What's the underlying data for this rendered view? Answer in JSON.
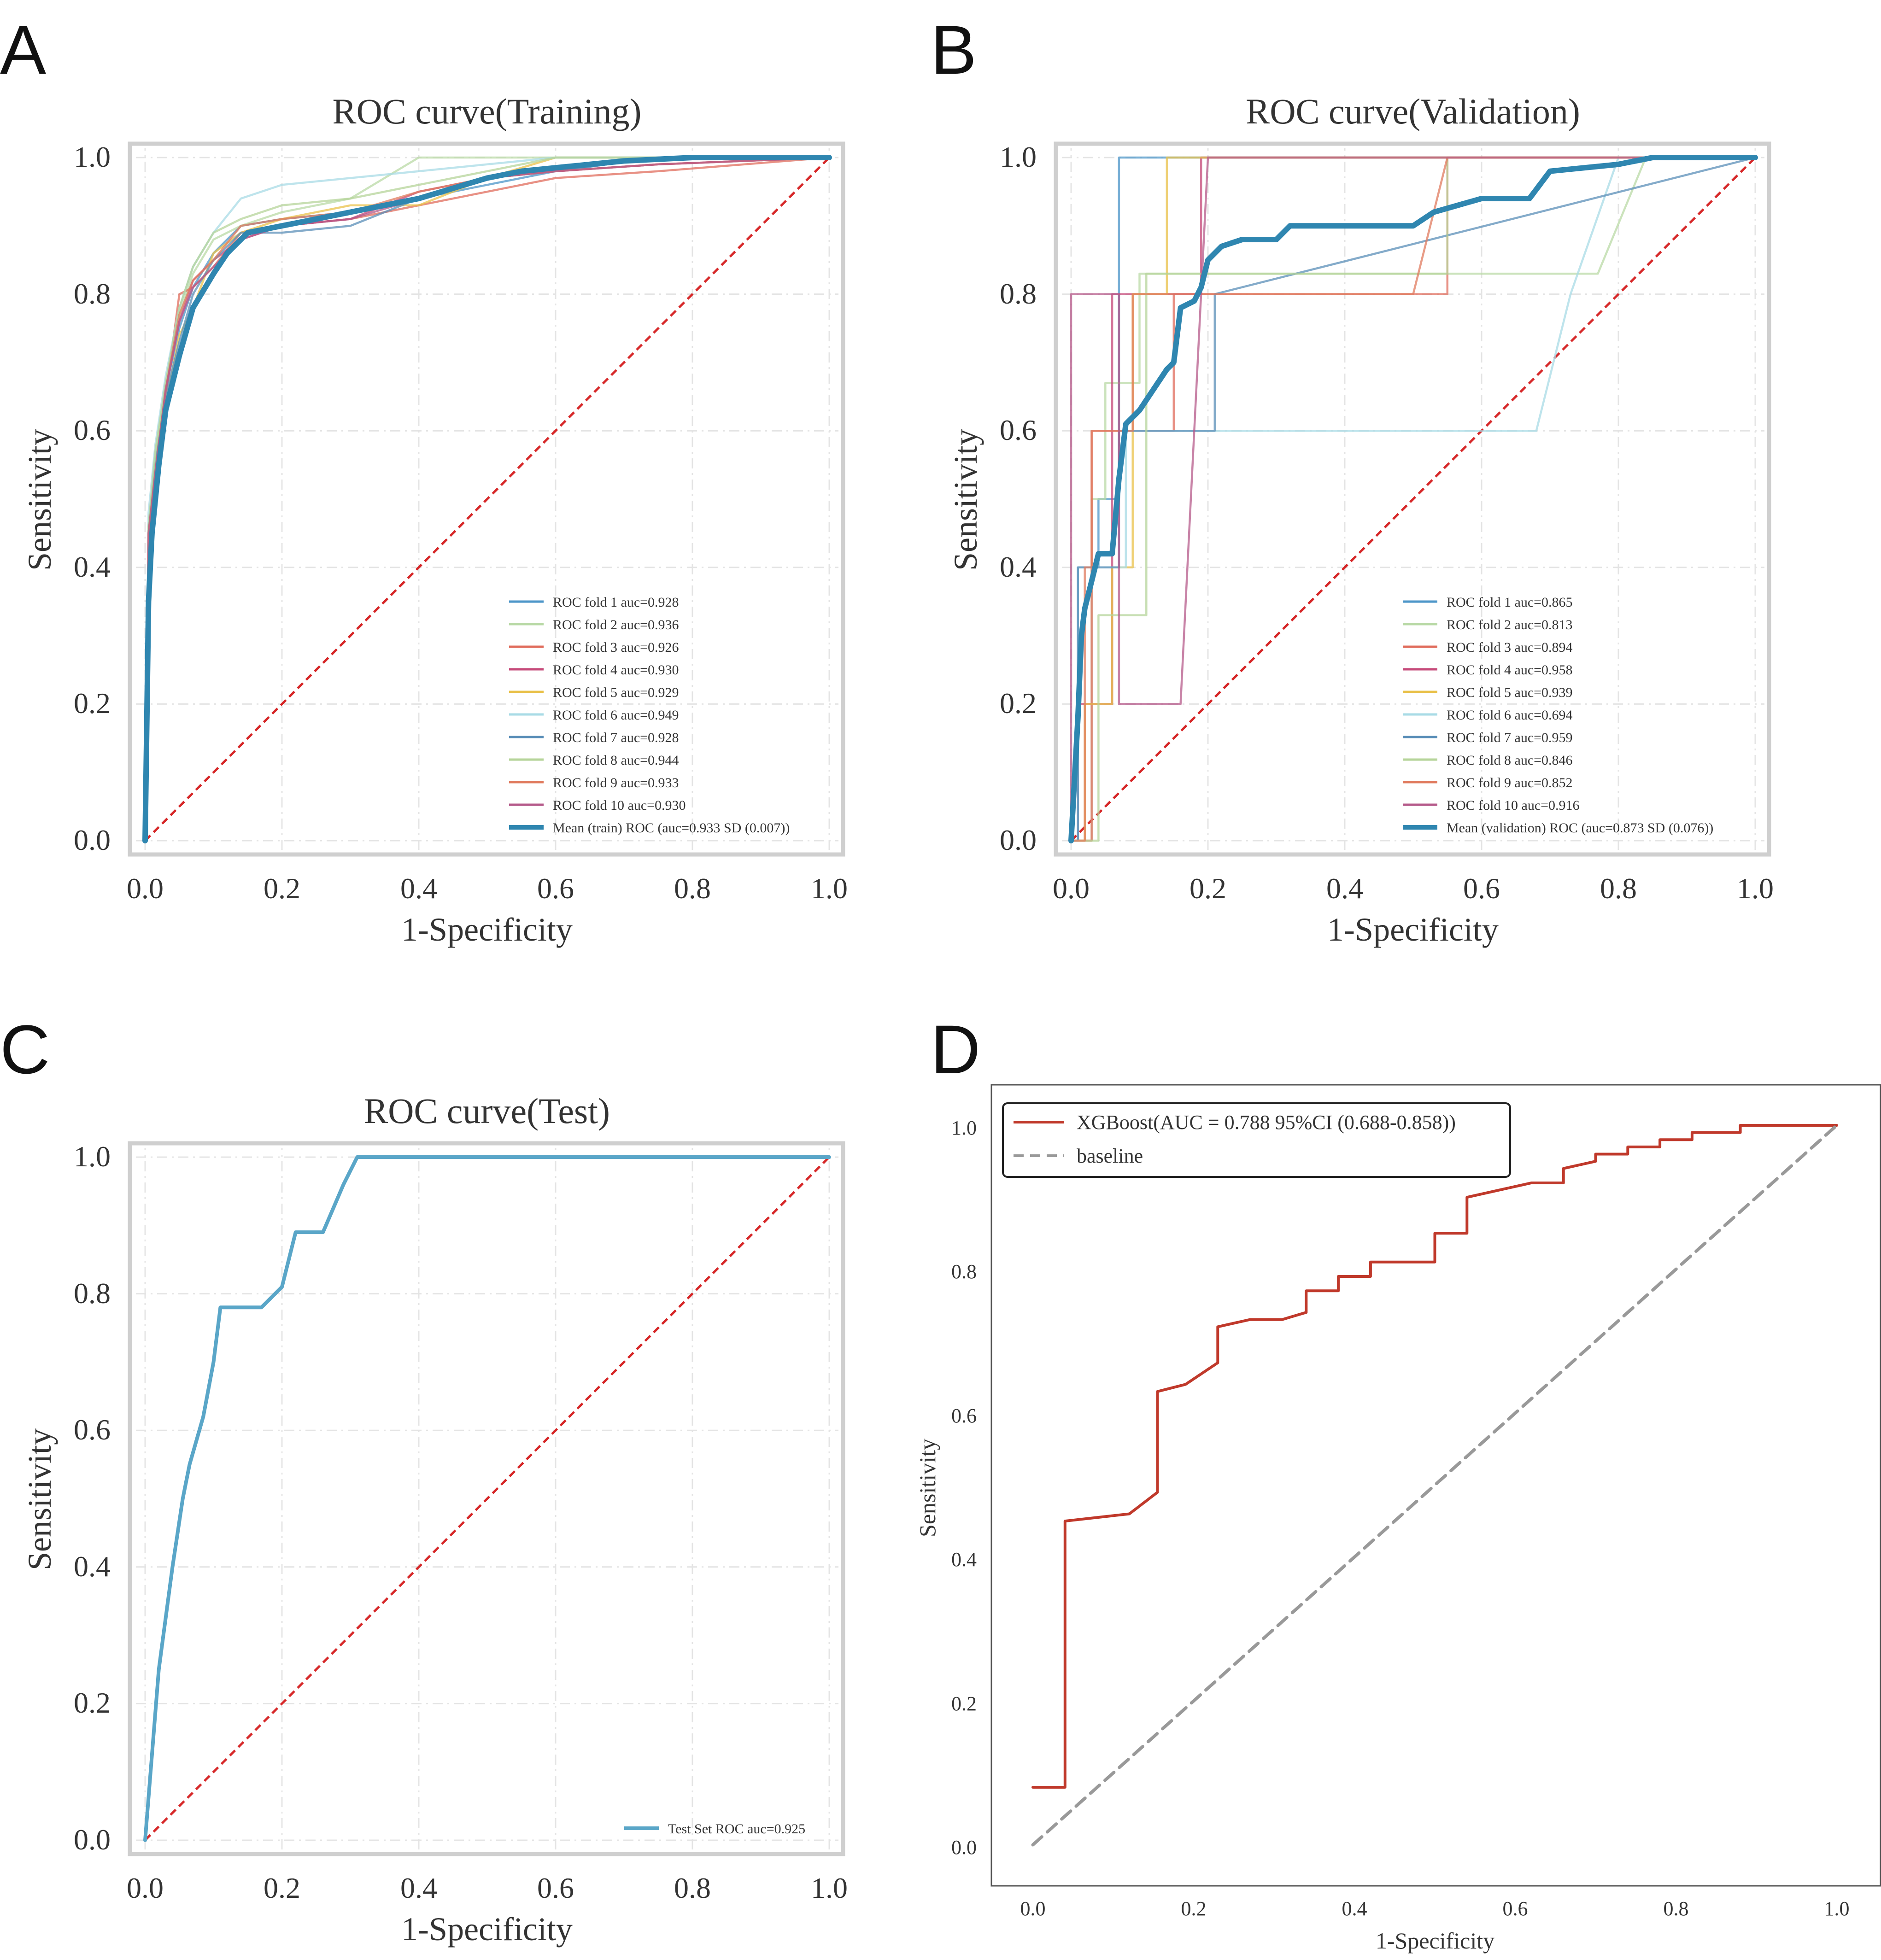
{
  "panels": {
    "A": {
      "letter": "A"
    },
    "B": {
      "letter": "B"
    },
    "C": {
      "letter": "C"
    },
    "D": {
      "letter": "D"
    }
  },
  "chart_data": [
    {
      "id": "A",
      "type": "line",
      "title": "ROC curve(Training)",
      "xlabel": "1-Specificity",
      "ylabel": "Sensitivity",
      "xlim": [
        0,
        1
      ],
      "ylim": [
        0,
        1
      ],
      "xticks": [
        "0.0",
        "0.2",
        "0.4",
        "0.6",
        "0.8",
        "1.0"
      ],
      "yticks": [
        "0.0",
        "0.2",
        "0.4",
        "0.6",
        "0.8",
        "1.0"
      ],
      "grid": true,
      "legend_position": "lower-right",
      "reference_line": {
        "x": [
          0,
          1
        ],
        "y": [
          0,
          1
        ],
        "color": "#d62728",
        "style": "dashed"
      },
      "series": [
        {
          "name": "ROC fold   1 auc=0.928",
          "color": "#4c96c8",
          "x": [
            0,
            0.005,
            0.015,
            0.03,
            0.05,
            0.07,
            0.1,
            0.14,
            0.2,
            0.3,
            0.4,
            0.5,
            0.6,
            0.75,
            1.0
          ],
          "y": [
            0,
            0.45,
            0.55,
            0.66,
            0.75,
            0.81,
            0.86,
            0.9,
            0.91,
            0.92,
            0.94,
            0.96,
            0.98,
            1.0,
            1.0
          ]
        },
        {
          "name": "ROC fold   2 auc=0.936",
          "color": "#b9d9a6",
          "x": [
            0,
            0.005,
            0.015,
            0.03,
            0.05,
            0.07,
            0.1,
            0.14,
            0.2,
            0.3,
            0.4,
            0.5,
            0.6,
            0.75,
            1.0
          ],
          "y": [
            0,
            0.46,
            0.56,
            0.67,
            0.77,
            0.83,
            0.88,
            0.9,
            0.92,
            0.94,
            1.0,
            1.0,
            1.0,
            1.0,
            1.0
          ]
        },
        {
          "name": "ROC fold   3 auc=0.926",
          "color": "#e06c5c",
          "x": [
            0,
            0.005,
            0.015,
            0.03,
            0.05,
            0.07,
            0.1,
            0.14,
            0.2,
            0.3,
            0.4,
            0.5,
            0.6,
            0.75,
            1.0
          ],
          "y": [
            0,
            0.44,
            0.5,
            0.65,
            0.8,
            0.81,
            0.84,
            0.89,
            0.9,
            0.91,
            0.93,
            0.95,
            0.97,
            0.98,
            1.0
          ]
        },
        {
          "name": "ROC fold   4 auc=0.930",
          "color": "#c64a7a",
          "x": [
            0,
            0.005,
            0.015,
            0.03,
            0.05,
            0.07,
            0.1,
            0.14,
            0.2,
            0.3,
            0.4,
            0.5,
            0.6,
            0.75,
            1.0
          ],
          "y": [
            0,
            0.45,
            0.53,
            0.66,
            0.76,
            0.82,
            0.85,
            0.88,
            0.9,
            0.91,
            0.95,
            0.97,
            0.98,
            0.99,
            1.0
          ]
        },
        {
          "name": "ROC fold   5 auc=0.929",
          "color": "#e9c14a",
          "x": [
            0,
            0.005,
            0.015,
            0.03,
            0.05,
            0.07,
            0.1,
            0.14,
            0.2,
            0.3,
            0.4,
            0.5,
            0.6,
            0.75,
            1.0
          ],
          "y": [
            0,
            0.44,
            0.52,
            0.64,
            0.74,
            0.78,
            0.86,
            0.89,
            0.91,
            0.93,
            0.93,
            0.97,
            1.0,
            1.0,
            1.0
          ]
        },
        {
          "name": "ROC fold   6 auc=0.949",
          "color": "#a8dbe6",
          "x": [
            0,
            0.005,
            0.015,
            0.03,
            0.05,
            0.07,
            0.1,
            0.14,
            0.2,
            0.3,
            0.4,
            0.5,
            0.6,
            0.75,
            1.0
          ],
          "y": [
            0,
            0.48,
            0.58,
            0.68,
            0.78,
            0.84,
            0.89,
            0.94,
            0.96,
            0.97,
            0.98,
            0.99,
            1.0,
            1.0,
            1.0
          ]
        },
        {
          "name": "ROC fold   7 auc=0.928",
          "color": "#5b8fb8",
          "x": [
            0,
            0.005,
            0.015,
            0.03,
            0.05,
            0.07,
            0.1,
            0.14,
            0.2,
            0.3,
            0.4,
            0.5,
            0.6,
            0.75,
            1.0
          ],
          "y": [
            0,
            0.45,
            0.55,
            0.65,
            0.73,
            0.8,
            0.85,
            0.89,
            0.89,
            0.9,
            0.94,
            0.97,
            0.98,
            1.0,
            1.0
          ]
        },
        {
          "name": "ROC fold   8 auc=0.944",
          "color": "#b6d49a",
          "x": [
            0,
            0.005,
            0.015,
            0.03,
            0.05,
            0.07,
            0.1,
            0.14,
            0.2,
            0.3,
            0.4,
            0.5,
            0.6,
            0.75,
            1.0
          ],
          "y": [
            0,
            0.46,
            0.57,
            0.67,
            0.78,
            0.84,
            0.89,
            0.91,
            0.93,
            0.94,
            0.96,
            0.98,
            1.0,
            1.0,
            1.0
          ]
        },
        {
          "name": "ROC fold   9 auc=0.933",
          "color": "#e07b5f",
          "x": [
            0,
            0.005,
            0.015,
            0.03,
            0.05,
            0.07,
            0.1,
            0.14,
            0.2,
            0.3,
            0.4,
            0.5,
            0.6,
            0.75,
            1.0
          ],
          "y": [
            0,
            0.45,
            0.54,
            0.66,
            0.77,
            0.82,
            0.85,
            0.9,
            0.91,
            0.92,
            0.95,
            0.97,
            0.98,
            0.99,
            1.0
          ]
        },
        {
          "name": "ROC fold   10 auc=0.930",
          "color": "#b55a8a",
          "x": [
            0,
            0.005,
            0.015,
            0.03,
            0.05,
            0.07,
            0.1,
            0.14,
            0.2,
            0.3,
            0.4,
            0.5,
            0.6,
            0.75,
            1.0
          ],
          "y": [
            0,
            0.45,
            0.54,
            0.66,
            0.76,
            0.81,
            0.84,
            0.88,
            0.9,
            0.91,
            0.94,
            0.97,
            0.98,
            0.99,
            1.0
          ]
        },
        {
          "name": "Mean (train) ROC (auc=0.933 SD (0.007))",
          "color": "#2f86b0",
          "mean": true,
          "x": [
            0,
            0.005,
            0.01,
            0.02,
            0.03,
            0.05,
            0.07,
            0.1,
            0.12,
            0.15,
            0.2,
            0.25,
            0.3,
            0.35,
            0.4,
            0.45,
            0.5,
            0.55,
            0.6,
            0.7,
            0.8,
            1.0
          ],
          "y": [
            0,
            0.35,
            0.45,
            0.55,
            0.63,
            0.71,
            0.78,
            0.83,
            0.86,
            0.89,
            0.9,
            0.91,
            0.92,
            0.93,
            0.94,
            0.955,
            0.97,
            0.98,
            0.985,
            0.995,
            1.0,
            1.0
          ]
        }
      ]
    },
    {
      "id": "B",
      "type": "line",
      "title": "ROC curve(Validation)",
      "xlabel": "1-Specificity",
      "ylabel": "Sensitivity",
      "xlim": [
        0,
        1
      ],
      "ylim": [
        0,
        1
      ],
      "xticks": [
        "0.0",
        "0.2",
        "0.4",
        "0.6",
        "0.8",
        "1.0"
      ],
      "yticks": [
        "0.0",
        "0.2",
        "0.4",
        "0.6",
        "0.8",
        "1.0"
      ],
      "grid": true,
      "legend_position": "lower-right",
      "reference_line": {
        "x": [
          0,
          1
        ],
        "y": [
          0,
          1
        ],
        "color": "#d62728",
        "style": "dashed"
      },
      "series": [
        {
          "name": "ROC fold   1 auc=0.865",
          "color": "#4c96c8",
          "x": [
            0,
            0.01,
            0.01,
            0.04,
            0.04,
            0.07,
            0.07,
            0.32,
            0.32,
            1.0
          ],
          "y": [
            0,
            0,
            0.4,
            0.4,
            0.5,
            0.5,
            1.0,
            1.0,
            1.0,
            1.0
          ]
        },
        {
          "name": "ROC fold   2 auc=0.813",
          "color": "#b9d9a6",
          "x": [
            0,
            0.03,
            0.03,
            0.05,
            0.05,
            0.1,
            0.1,
            0.77,
            0.84,
            1.0
          ],
          "y": [
            0,
            0,
            0.5,
            0.5,
            0.67,
            0.67,
            0.83,
            0.83,
            1.0,
            1.0
          ]
        },
        {
          "name": "ROC fold   3 auc=0.894",
          "color": "#e06c5c",
          "x": [
            0,
            0.03,
            0.03,
            0.15,
            0.15,
            0.55,
            0.55,
            1.0
          ],
          "y": [
            0,
            0,
            0.6,
            0.6,
            0.8,
            0.8,
            1.0,
            1.0
          ]
        },
        {
          "name": "ROC fold   4 auc=0.958",
          "color": "#c64a7a",
          "x": [
            0,
            0.01,
            0.01,
            0.06,
            0.06,
            0.19,
            0.19,
            1.0
          ],
          "y": [
            0,
            0,
            0.2,
            0.2,
            0.8,
            0.8,
            1.0,
            1.0
          ]
        },
        {
          "name": "ROC fold   5 auc=0.939",
          "color": "#e9c14a",
          "x": [
            0,
            0.02,
            0.02,
            0.06,
            0.06,
            0.09,
            0.09,
            0.14,
            0.14,
            1.0
          ],
          "y": [
            0,
            0,
            0.2,
            0.2,
            0.4,
            0.4,
            0.8,
            0.8,
            1.0,
            1.0
          ]
        },
        {
          "name": "ROC fold   6 auc=0.694",
          "color": "#a8dbe6",
          "x": [
            0,
            0.01,
            0.01,
            0.08,
            0.08,
            0.68,
            0.73,
            0.8,
            1.0
          ],
          "y": [
            0,
            0,
            0.4,
            0.4,
            0.6,
            0.6,
            0.8,
            1.0,
            1.0
          ]
        },
        {
          "name": "ROC fold   7 auc=0.959",
          "color": "#5b8fb8",
          "x": [
            0,
            0.01,
            0.01,
            0.07,
            0.07,
            0.21,
            0.21,
            1.0
          ],
          "y": [
            0,
            0,
            0.4,
            0.4,
            0.6,
            0.6,
            0.8,
            1.0
          ]
        },
        {
          "name": "ROC fold   8 auc=0.846",
          "color": "#b6d49a",
          "x": [
            0,
            0.04,
            0.04,
            0.11,
            0.11,
            0.55,
            0.55,
            1.0
          ],
          "y": [
            0,
            0,
            0.33,
            0.33,
            0.83,
            0.83,
            1.0,
            1.0
          ]
        },
        {
          "name": "ROC fold   9 auc=0.852",
          "color": "#e07b5f",
          "x": [
            0,
            0.02,
            0.02,
            0.03,
            0.03,
            0.09,
            0.09,
            0.5,
            0.55,
            1.0
          ],
          "y": [
            0,
            0,
            0.4,
            0.4,
            0.6,
            0.6,
            0.8,
            0.8,
            1.0,
            1.0
          ]
        },
        {
          "name": "ROC fold   10 auc=0.916",
          "color": "#b55a8a",
          "x": [
            0,
            0,
            0.07,
            0.07,
            0.16,
            0.2,
            0.2,
            1.0
          ],
          "y": [
            0,
            0.8,
            0.8,
            0.2,
            0.2,
            1.0,
            1.0,
            1.0
          ]
        },
        {
          "name": "Mean (validation) ROC (auc=0.873 SD (0.076))",
          "color": "#2f86b0",
          "mean": true,
          "x": [
            0,
            0.01,
            0.015,
            0.02,
            0.03,
            0.04,
            0.06,
            0.07,
            0.08,
            0.1,
            0.12,
            0.14,
            0.15,
            0.16,
            0.18,
            0.19,
            0.2,
            0.22,
            0.25,
            0.3,
            0.32,
            0.4,
            0.5,
            0.53,
            0.6,
            0.65,
            0.67,
            0.7,
            0.8,
            0.85,
            1.0
          ],
          "y": [
            0,
            0.18,
            0.3,
            0.34,
            0.38,
            0.42,
            0.42,
            0.53,
            0.61,
            0.63,
            0.66,
            0.69,
            0.7,
            0.78,
            0.79,
            0.81,
            0.85,
            0.87,
            0.88,
            0.88,
            0.9,
            0.9,
            0.9,
            0.92,
            0.94,
            0.94,
            0.94,
            0.98,
            0.99,
            1.0,
            1.0
          ]
        }
      ]
    },
    {
      "id": "C",
      "type": "line",
      "title": "ROC curve(Test)",
      "xlabel": "1-Specificity",
      "ylabel": "Sensitivity",
      "xlim": [
        0,
        1
      ],
      "ylim": [
        0,
        1
      ],
      "xticks": [
        "0.0",
        "0.2",
        "0.4",
        "0.6",
        "0.8",
        "1.0"
      ],
      "yticks": [
        "0.0",
        "0.2",
        "0.4",
        "0.6",
        "0.8",
        "1.0"
      ],
      "grid": true,
      "legend_position": "lower-right",
      "reference_line": {
        "x": [
          0,
          1
        ],
        "y": [
          0,
          1
        ],
        "color": "#d62728",
        "style": "dashed"
      },
      "series": [
        {
          "name": "Test Set ROC auc=0.925",
          "color": "#5aa6c8",
          "x": [
            0,
            0.02,
            0.04,
            0.055,
            0.065,
            0.085,
            0.1,
            0.11,
            0.13,
            0.17,
            0.2,
            0.22,
            0.26,
            0.29,
            0.31,
            1.0
          ],
          "y": [
            0,
            0.25,
            0.4,
            0.5,
            0.55,
            0.62,
            0.7,
            0.78,
            0.78,
            0.78,
            0.81,
            0.89,
            0.89,
            0.96,
            1.0,
            1.0
          ]
        }
      ]
    },
    {
      "id": "D",
      "type": "line",
      "title": "",
      "xlabel": "1-Specificity",
      "ylabel": "Sensitivity",
      "xlim": [
        0,
        1
      ],
      "ylim": [
        0,
        1
      ],
      "xticks": [
        "0.0",
        "0.2",
        "0.4",
        "0.6",
        "0.8",
        "1.0"
      ],
      "yticks": [
        "0.0",
        "0.2",
        "0.4",
        "0.6",
        "0.8",
        "1.0"
      ],
      "grid": false,
      "legend_position": "top-left",
      "series": [
        {
          "name": "XGBoost(AUC = 0.788 95%CI (0.688-0.858))",
          "color": "#c0392b",
          "step": true,
          "x": [
            0,
            0.04,
            0.04,
            0.12,
            0.155,
            0.155,
            0.19,
            0.23,
            0.23,
            0.27,
            0.31,
            0.34,
            0.34,
            0.38,
            0.38,
            0.42,
            0.42,
            0.5,
            0.5,
            0.54,
            0.54,
            0.58,
            0.62,
            0.66,
            0.66,
            0.7,
            0.7,
            0.74,
            0.74,
            0.78,
            0.78,
            0.82,
            0.82,
            0.88,
            0.88,
            1.0
          ],
          "y": [
            0.08,
            0.08,
            0.45,
            0.46,
            0.49,
            0.63,
            0.64,
            0.67,
            0.72,
            0.73,
            0.73,
            0.74,
            0.77,
            0.77,
            0.79,
            0.79,
            0.81,
            0.81,
            0.85,
            0.85,
            0.9,
            0.91,
            0.92,
            0.92,
            0.94,
            0.95,
            0.96,
            0.96,
            0.97,
            0.97,
            0.98,
            0.98,
            0.99,
            0.99,
            1.0,
            1.0
          ]
        },
        {
          "name": "baseline",
          "color": "#999999",
          "dashed": true,
          "x": [
            0,
            1
          ],
          "y": [
            0,
            1
          ]
        }
      ]
    }
  ]
}
